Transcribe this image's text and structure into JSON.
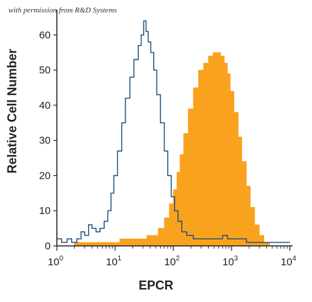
{
  "note": "with permission from R&D Systems",
  "chart_data": {
    "type": "area",
    "title": "",
    "xlabel": "EPCR",
    "ylabel": "Relative Cell Number",
    "xscale": "log",
    "xlim": [
      1,
      10000
    ],
    "ylim": [
      0,
      66
    ],
    "x_ticks": [
      {
        "value": 1,
        "base": "10",
        "exp": "0"
      },
      {
        "value": 10,
        "base": "10",
        "exp": "1"
      },
      {
        "value": 100,
        "base": "10",
        "exp": "2"
      },
      {
        "value": 1000,
        "base": "10",
        "exp": "3"
      },
      {
        "value": 10000,
        "base": "10",
        "exp": "4"
      }
    ],
    "y_ticks": [
      0,
      10,
      20,
      30,
      40,
      50,
      60
    ],
    "grid": false,
    "series": [
      {
        "style": "outline",
        "color": "#1f4e79",
        "points": [
          [
            1.0,
            2
          ],
          [
            1.2,
            1
          ],
          [
            1.5,
            2
          ],
          [
            1.8,
            1
          ],
          [
            2.2,
            2
          ],
          [
            2.6,
            4
          ],
          [
            3.0,
            3
          ],
          [
            3.5,
            6
          ],
          [
            4.0,
            5
          ],
          [
            4.7,
            4
          ],
          [
            5.5,
            5
          ],
          [
            6.5,
            7
          ],
          [
            7.5,
            10
          ],
          [
            8.5,
            15
          ],
          [
            9.5,
            20
          ],
          [
            11,
            27
          ],
          [
            13,
            35
          ],
          [
            15,
            42
          ],
          [
            18,
            48
          ],
          [
            21,
            53
          ],
          [
            25,
            57
          ],
          [
            28,
            60
          ],
          [
            31,
            64
          ],
          [
            34,
            61
          ],
          [
            37,
            58
          ],
          [
            41,
            55
          ],
          [
            46,
            50
          ],
          [
            52,
            43
          ],
          [
            60,
            35
          ],
          [
            70,
            27
          ],
          [
            80,
            20
          ],
          [
            92,
            14
          ],
          [
            105,
            10
          ],
          [
            120,
            7
          ],
          [
            140,
            4
          ],
          [
            170,
            3
          ],
          [
            220,
            2
          ],
          [
            300,
            2
          ],
          [
            400,
            2
          ],
          [
            550,
            2
          ],
          [
            700,
            3
          ],
          [
            850,
            2
          ],
          [
            1000,
            2
          ],
          [
            1300,
            2
          ],
          [
            1800,
            1
          ],
          [
            2500,
            1
          ],
          [
            3500,
            1
          ],
          [
            5000,
            1
          ],
          [
            7000,
            1
          ],
          [
            10000,
            1
          ]
        ]
      },
      {
        "style": "filled",
        "color": "#f9a21e",
        "points": [
          [
            2.0,
            0
          ],
          [
            3.0,
            1
          ],
          [
            5.0,
            1
          ],
          [
            8.0,
            1
          ],
          [
            12,
            1
          ],
          [
            20,
            2
          ],
          [
            35,
            2
          ],
          [
            55,
            3
          ],
          [
            70,
            5
          ],
          [
            85,
            8
          ],
          [
            100,
            12
          ],
          [
            115,
            16
          ],
          [
            130,
            21
          ],
          [
            150,
            26
          ],
          [
            180,
            32
          ],
          [
            220,
            39
          ],
          [
            270,
            45
          ],
          [
            330,
            50
          ],
          [
            400,
            52
          ],
          [
            480,
            54
          ],
          [
            560,
            55
          ],
          [
            650,
            55
          ],
          [
            750,
            54
          ],
          [
            850,
            52
          ],
          [
            950,
            49
          ],
          [
            1100,
            44
          ],
          [
            1300,
            38
          ],
          [
            1500,
            31
          ],
          [
            1800,
            24
          ],
          [
            2100,
            17
          ],
          [
            2500,
            11
          ],
          [
            3000,
            6
          ],
          [
            3600,
            3
          ],
          [
            4500,
            1
          ],
          [
            6000,
            0
          ]
        ]
      }
    ]
  }
}
